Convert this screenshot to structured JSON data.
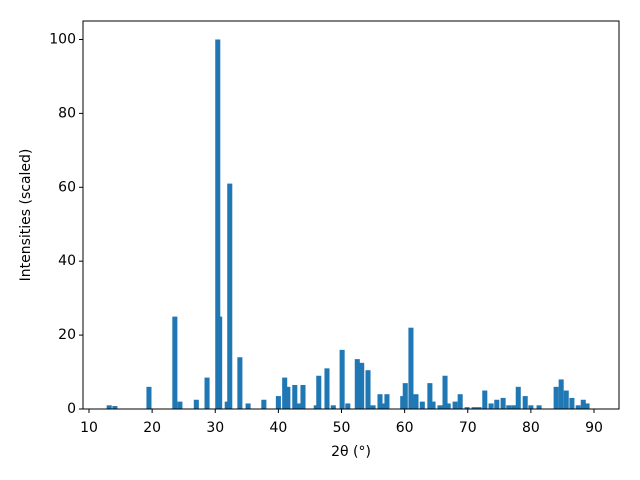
{
  "chart_data": {
    "type": "bar",
    "xlabel": "2θ (°)",
    "ylabel": "Intensities (scaled)",
    "color": "#1f77b4",
    "x": [
      13.2,
      14.1,
      19.5,
      23.6,
      24.4,
      27.0,
      28.7,
      30.4,
      30.7,
      31.9,
      32.3,
      33.9,
      35.2,
      37.7,
      40.0,
      41.0,
      41.5,
      42.6,
      43.1,
      43.9,
      46.0,
      46.4,
      47.7,
      48.7,
      50.1,
      51.0,
      52.5,
      53.2,
      54.2,
      55.0,
      56.1,
      56.6,
      57.2,
      59.7,
      60.1,
      61.0,
      61.8,
      62.8,
      64.0,
      64.5,
      65.6,
      66.4,
      66.9,
      68.0,
      68.8,
      69.9,
      71.0,
      71.8,
      72.7,
      73.7,
      74.6,
      75.6,
      76.5,
      77.3,
      78.0,
      79.1,
      80.0,
      81.3,
      84.0,
      84.8,
      85.6,
      86.5,
      87.5,
      88.3,
      88.9
    ],
    "values": [
      1,
      0.8,
      6,
      25,
      2,
      2.5,
      8.5,
      100,
      25,
      2,
      61,
      14,
      1.5,
      2.5,
      3.5,
      8.5,
      6,
      6.5,
      1.5,
      6.5,
      1,
      9,
      11,
      1,
      16,
      1.5,
      13.5,
      12.5,
      10.5,
      1,
      4,
      1.5,
      4,
      3.5,
      7,
      22,
      4,
      2,
      7,
      2,
      1,
      9,
      1.5,
      2,
      4,
      0.5,
      0.5,
      0.5,
      5,
      1.5,
      2.5,
      3,
      1,
      1,
      6,
      3.5,
      1,
      1,
      6,
      8,
      5,
      3,
      1,
      2.5,
      1.5
    ],
    "xlim": [
      9.05,
      93.96
    ],
    "ylim": [
      0,
      105
    ],
    "xticks": [
      10,
      20,
      30,
      40,
      50,
      60,
      70,
      80,
      90
    ],
    "yticks": [
      0,
      20,
      40,
      60,
      80,
      100
    ]
  }
}
